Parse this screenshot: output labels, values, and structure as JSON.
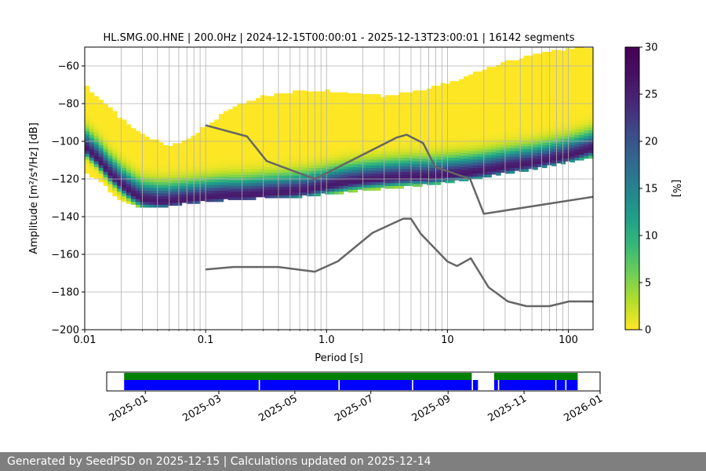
{
  "chart_data": [
    {
      "type": "heatmap",
      "title": "HL.SMG.00.HNE | 200.0Hz | 2024-12-15T00:00:01 - 2025-12-13T23:00:01 | 16142 segments",
      "xlabel": "Period [s]",
      "ylabel": "Amplitude [m²/s⁴/Hz] [dB]",
      "xscale": "log",
      "xlim": [
        0.01,
        160
      ],
      "ylim": [
        -200,
        -50
      ],
      "xticks": [
        {
          "value": 0.01,
          "label": "0.01"
        },
        {
          "value": 0.1,
          "label": "0.1"
        },
        {
          "value": 1,
          "label": "1.0"
        },
        {
          "value": 10,
          "label": "10"
        },
        {
          "value": 100,
          "label": "100"
        }
      ],
      "yticks": [
        -200,
        -180,
        -160,
        -140,
        -120,
        -100,
        -80,
        -60
      ],
      "grid": true,
      "colorbar": {
        "label": "[%]",
        "min": 0,
        "max": 30,
        "ticks": [
          0,
          5,
          10,
          15,
          20,
          25,
          30
        ],
        "colormap": "viridis_r"
      },
      "mode_curve": {
        "period": [
          0.01,
          0.013,
          0.016,
          0.02,
          0.025,
          0.03,
          0.04,
          0.05,
          0.07,
          0.1,
          0.15,
          0.2,
          0.3,
          0.5,
          0.7,
          1,
          1.5,
          2,
          3,
          5,
          7,
          10,
          15,
          20,
          30,
          50,
          70,
          100,
          160
        ],
        "amplitude": [
          -103,
          -110,
          -117,
          -123,
          -128,
          -131,
          -132,
          -132,
          -131,
          -130,
          -129,
          -129,
          -128,
          -127,
          -126,
          -124,
          -122,
          -121,
          -120,
          -119,
          -119,
          -118,
          -117,
          -116,
          -114,
          -112,
          -110,
          -108,
          -104
        ]
      },
      "envelope_upper": {
        "period": [
          0.01,
          0.013,
          0.016,
          0.02,
          0.025,
          0.03,
          0.04,
          0.05,
          0.07,
          0.1,
          0.15,
          0.2,
          0.3,
          0.5,
          0.7,
          1,
          1.5,
          2,
          3,
          5,
          7,
          10,
          15,
          20,
          30,
          50,
          70,
          100,
          160
        ],
        "amplitude": [
          -70,
          -77,
          -82,
          -88,
          -93,
          -96,
          -100,
          -102,
          -99,
          -92,
          -84,
          -80,
          -76,
          -74,
          -73,
          -73,
          -74,
          -75,
          -76,
          -74,
          -72,
          -69,
          -65,
          -62,
          -58,
          -54,
          -52,
          -51,
          -50
        ]
      },
      "envelope_lower": {
        "period": [
          0.01,
          0.013,
          0.016,
          0.02,
          0.025,
          0.03,
          0.04,
          0.05,
          0.07,
          0.1,
          0.15,
          0.2,
          0.3,
          0.5,
          0.7,
          1,
          1.5,
          2,
          3,
          5,
          7,
          10,
          15,
          20,
          30,
          50,
          70,
          100,
          160
        ],
        "amplitude": [
          -116,
          -121,
          -126,
          -131,
          -134,
          -135,
          -135,
          -134,
          -133,
          -132,
          -131,
          -131,
          -130,
          -130,
          -129,
          -128,
          -127,
          -126,
          -125,
          -124,
          -123,
          -122,
          -120,
          -119,
          -117,
          -115,
          -113,
          -111,
          -108
        ]
      },
      "high_noise_model": {
        "period": [
          0.1,
          0.22,
          0.32,
          0.8,
          3.8,
          4.6,
          6.3,
          7.9,
          15.4,
          20,
          354.8
        ],
        "amplitude": [
          -91.5,
          -97.4,
          -110.5,
          -120,
          -98,
          -96.5,
          -101,
          -113.5,
          -120,
          -138.5,
          -126
        ]
      },
      "low_noise_model": {
        "period": [
          0.1,
          0.17,
          0.4,
          0.8,
          1.24,
          2.4,
          4.3,
          5,
          6,
          10,
          12,
          15.6,
          21.9,
          31.6,
          45,
          70,
          101,
          154,
          328
        ],
        "amplitude": [
          -168,
          -166.7,
          -166.7,
          -169.2,
          -163.7,
          -148.6,
          -141.1,
          -141.1,
          -149,
          -163.8,
          -166.2,
          -162.1,
          -177.5,
          -185,
          -187.5,
          -187.5,
          -185,
          -185,
          -187.5
        ]
      }
    },
    {
      "type": "timeline",
      "xlim": [
        "2024-12-01",
        "2026-01-01"
      ],
      "xticks": [
        "2025-01",
        "2025-03",
        "2025-05",
        "2025-07",
        "2025-09",
        "2025-11",
        "2026-01"
      ],
      "green_segments": [
        [
          "2024-12-15",
          "2025-09-20"
        ],
        [
          "2025-10-08",
          "2025-12-14"
        ]
      ],
      "blue_segments": [
        [
          "2024-12-15",
          "2025-04-02"
        ],
        [
          "2025-04-03",
          "2025-06-05"
        ],
        [
          "2025-06-06",
          "2025-08-03"
        ],
        [
          "2025-08-04",
          "2025-09-20"
        ],
        [
          "2025-09-21",
          "2025-09-25"
        ],
        [
          "2025-10-08",
          "2025-10-11"
        ],
        [
          "2025-10-12",
          "2025-11-26"
        ],
        [
          "2025-11-27",
          "2025-12-04"
        ],
        [
          "2025-12-05",
          "2025-12-14"
        ]
      ],
      "colors": {
        "green": "#008000",
        "blue": "#0000ff"
      }
    }
  ],
  "footer": {
    "text": "Generated by SeedPSD on 2025-12-15 | Calculations updated on 2025-12-14"
  }
}
